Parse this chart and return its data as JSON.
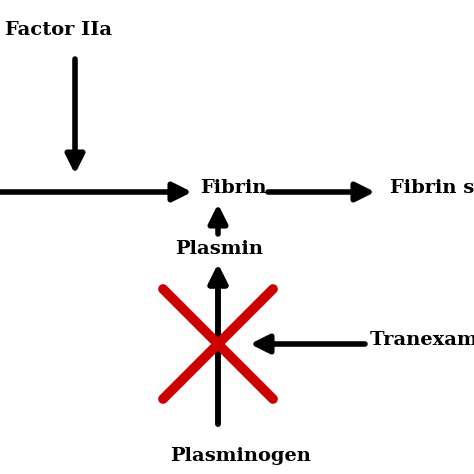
{
  "background_color": "#ffffff",
  "labels": {
    "factor_iia": "Factor IIa",
    "fibrin": "Fibrin",
    "fibrin_s": "Fibrin s",
    "plasmin": "Plasmin",
    "plasminogen": "Plasminogen",
    "tranexamic_acid": "Tranexamic Acid"
  },
  "font_size": 14,
  "arrow_color": "#000000",
  "arrow_lw": 4,
  "red_color": "#cc0000",
  "red_lw": 7,
  "mutation_scale": 28
}
